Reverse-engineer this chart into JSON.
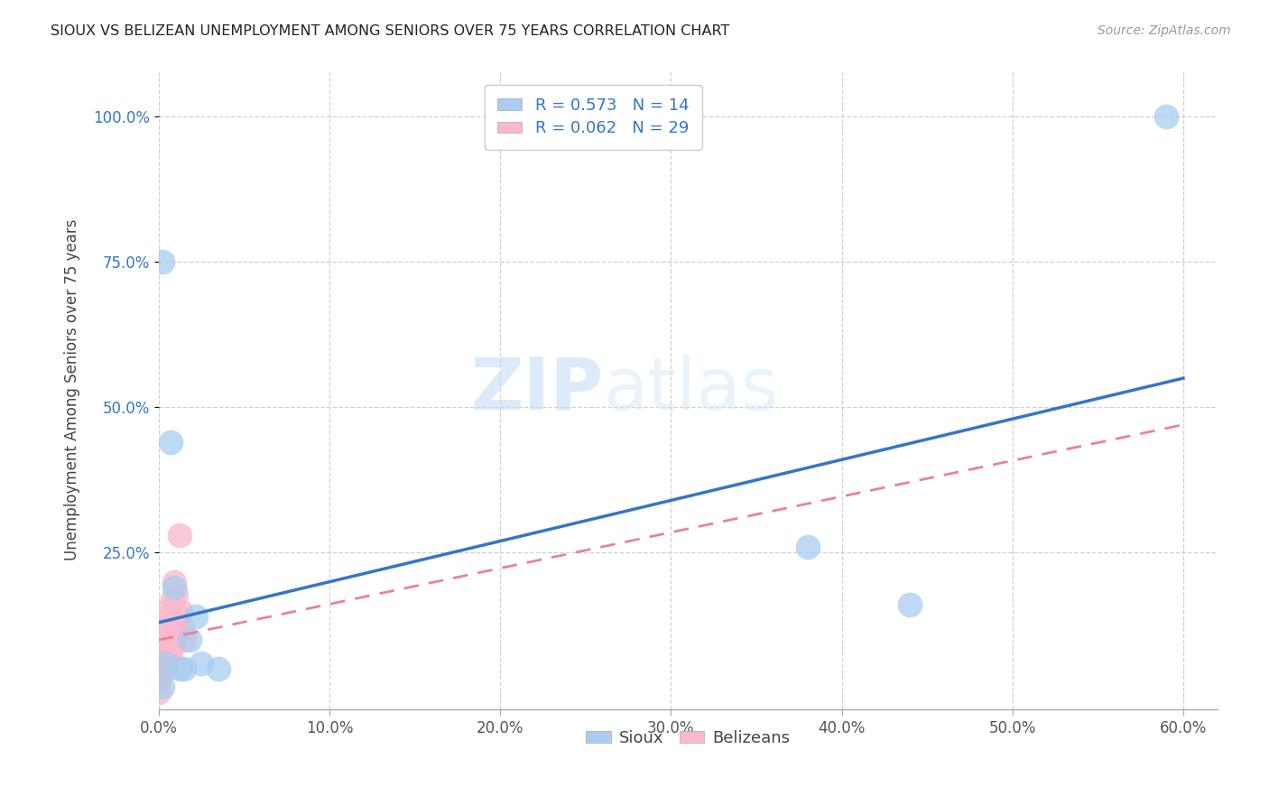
{
  "title": "SIOUX VS BELIZEAN UNEMPLOYMENT AMONG SENIORS OVER 75 YEARS CORRELATION CHART",
  "source": "Source: ZipAtlas.com",
  "ylabel": "Unemployment Among Seniors over 75 years",
  "xlim": [
    0.0,
    0.62
  ],
  "ylim": [
    -0.02,
    1.08
  ],
  "xtick_labels": [
    "0.0%",
    "10.0%",
    "20.0%",
    "30.0%",
    "40.0%",
    "50.0%",
    "60.0%"
  ],
  "xtick_values": [
    0.0,
    0.1,
    0.2,
    0.3,
    0.4,
    0.5,
    0.6
  ],
  "ytick_labels": [
    "100.0%",
    "75.0%",
    "50.0%",
    "25.0%"
  ],
  "ytick_values": [
    1.0,
    0.75,
    0.5,
    0.25
  ],
  "sioux_color": "#a8cdf0",
  "belizean_color": "#f9b8cb",
  "sioux_line_color": "#3575c8",
  "belizean_line_color": "#e8829a",
  "legend_R_sioux": "0.573",
  "legend_N_sioux": "14",
  "legend_R_belizean": "0.062",
  "legend_N_belizean": "29",
  "watermark_zip": "ZIP",
  "watermark_atlas": "atlas",
  "sioux_x": [
    0.002,
    0.004,
    0.007,
    0.009,
    0.012,
    0.015,
    0.018,
    0.022,
    0.025,
    0.035,
    0.38,
    0.44,
    0.59,
    0.002
  ],
  "sioux_y": [
    0.02,
    0.06,
    0.44,
    0.19,
    0.05,
    0.05,
    0.1,
    0.14,
    0.06,
    0.05,
    0.26,
    0.16,
    1.0,
    0.75
  ],
  "belizean_x": [
    0.0,
    0.0,
    0.0,
    0.0,
    0.001,
    0.001,
    0.002,
    0.002,
    0.003,
    0.003,
    0.004,
    0.004,
    0.005,
    0.005,
    0.005,
    0.006,
    0.007,
    0.007,
    0.008,
    0.008,
    0.009,
    0.009,
    0.01,
    0.01,
    0.011,
    0.012,
    0.013,
    0.014,
    0.015
  ],
  "belizean_y": [
    0.01,
    0.03,
    0.05,
    0.08,
    0.04,
    0.07,
    0.06,
    0.09,
    0.05,
    0.1,
    0.07,
    0.11,
    0.08,
    0.12,
    0.15,
    0.1,
    0.08,
    0.14,
    0.09,
    0.17,
    0.11,
    0.2,
    0.12,
    0.18,
    0.14,
    0.28,
    0.15,
    0.12,
    0.1
  ],
  "sioux_line_x": [
    0.0,
    0.6
  ],
  "sioux_line_y": [
    0.13,
    0.55
  ],
  "belizean_line_x": [
    0.0,
    0.6
  ],
  "belizean_line_y": [
    0.1,
    0.47
  ],
  "background_color": "#ffffff",
  "grid_color": "#d0d0d0"
}
